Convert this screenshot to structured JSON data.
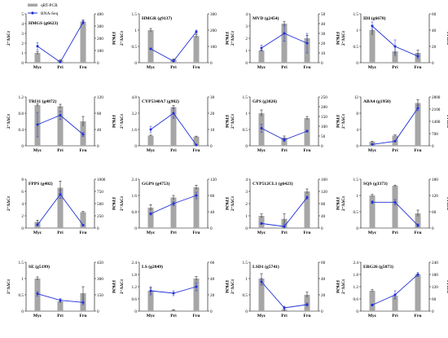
{
  "legend": {
    "bar_label": "qRT-PCR",
    "line_label": "RNA-Seq"
  },
  "y_left_label": "2⁻ΔΔCt",
  "y_right_label": "FPKM",
  "colors": {
    "bar": "#a6a6a6",
    "line": "#1f2fd6",
    "axis": "#000000"
  },
  "chart_data": [
    {
      "type": "bar",
      "title": "HMGS (g6623)",
      "categories": [
        "Myc",
        "Pri",
        "Fru"
      ],
      "bar_values": [
        1.0,
        0.25,
        4.2
      ],
      "bar_errors": [
        0.15,
        0.05,
        0.15
      ],
      "left_ticks": [
        0,
        1,
        2,
        3,
        4,
        5
      ],
      "line_values": [
        135,
        5,
        330
      ],
      "line_errors": [
        30,
        5,
        15
      ],
      "right_ticks": [
        0,
        100,
        200,
        300,
        400
      ]
    },
    {
      "type": "bar",
      "title": "HMGR (g9137)",
      "categories": [
        "Myc",
        "Pri",
        "Fru"
      ],
      "bar_values": [
        1.0,
        0.1,
        0.82
      ],
      "bar_errors": [
        0.05,
        0.02,
        0.05
      ],
      "left_ticks": [
        0,
        0.5,
        1.0,
        1.5
      ],
      "line_values": [
        85,
        10,
        190
      ],
      "line_errors": [
        5,
        3,
        10
      ],
      "right_ticks": [
        0,
        100,
        200,
        300
      ]
    },
    {
      "type": "bar",
      "title": "MVD (g2454)",
      "categories": [
        "Myc",
        "Pri",
        "Fru"
      ],
      "bar_values": [
        1.0,
        3.2,
        2.0
      ],
      "bar_errors": [
        0.05,
        0.15,
        0.25
      ],
      "left_ticks": [
        0,
        1,
        2,
        3,
        4
      ],
      "line_values": [
        15,
        30,
        20
      ],
      "line_errors": [
        3,
        8,
        10
      ],
      "right_ticks": [
        0,
        10,
        20,
        30,
        40,
        50
      ]
    },
    {
      "type": "bar",
      "title": "IDI (g6678)",
      "categories": [
        "Myc",
        "Pri",
        "Fru"
      ],
      "bar_values": [
        1.0,
        0.35,
        0.3
      ],
      "bar_errors": [
        0.15,
        0.15,
        0.08
      ],
      "left_ticks": [
        0,
        0.5,
        1.0,
        1.5
      ],
      "line_values": [
        45,
        20,
        8
      ],
      "line_errors": [
        5,
        8,
        3
      ],
      "right_ticks": [
        0,
        20,
        40,
        60
      ]
    },
    {
      "type": "bar",
      "title": "TRI11 (g4872)",
      "categories": [
        "Myc",
        "Pri",
        "Fru"
      ],
      "bar_values": [
        1.0,
        0.97,
        0.6
      ],
      "bar_errors": [
        0.03,
        0.05,
        0.12
      ],
      "left_ticks": [
        0,
        0.4,
        0.8,
        1.2
      ],
      "line_values": [
        52,
        75,
        28
      ],
      "line_errors": [
        30,
        10,
        5
      ],
      "right_ticks": [
        0,
        40,
        80,
        120
      ]
    },
    {
      "type": "bar",
      "title": "CYP5340A7 (g982)",
      "categories": [
        "Myc",
        "Pri",
        "Fru"
      ],
      "bar_values": [
        1.0,
        3.8,
        0.9
      ],
      "bar_errors": [
        0.05,
        0.15,
        0.05
      ],
      "left_ticks": [
        0,
        1.6,
        3.2,
        4.8
      ],
      "line_values": [
        10,
        20,
        0.5
      ],
      "line_errors": [
        2,
        3,
        0.5
      ],
      "right_ticks": [
        0,
        10,
        20,
        30
      ]
    },
    {
      "type": "bar",
      "title": "GPS (g3826)",
      "categories": [
        "Myc",
        "Pri",
        "Fru"
      ],
      "bar_values": [
        1.0,
        0.25,
        0.85
      ],
      "bar_errors": [
        0.1,
        0.05,
        0.05
      ],
      "left_ticks": [
        0,
        0.5,
        1.0,
        1.5
      ],
      "line_values": [
        90,
        30,
        75
      ],
      "line_errors": [
        20,
        8,
        5
      ],
      "right_ticks": [
        0,
        50,
        100,
        150,
        200,
        250
      ]
    },
    {
      "type": "bar",
      "title": "ABA4 (g1950)",
      "categories": [
        "Myc",
        "Pri",
        "Fru"
      ],
      "bar_values": [
        1.0,
        2.5,
        10.5
      ],
      "bar_errors": [
        0.1,
        0.15,
        0.8
      ],
      "left_ticks": [
        0,
        4,
        8,
        12
      ],
      "line_values": [
        80,
        260,
        2160
      ],
      "line_errors": [
        20,
        30,
        150
      ],
      "right_ticks": [
        0,
        700,
        1400,
        2100,
        2800
      ]
    },
    {
      "type": "bar",
      "title": "FPPS (g402)",
      "categories": [
        "Myc",
        "Pri",
        "Fru"
      ],
      "bar_values": [
        1.0,
        6.6,
        2.6
      ],
      "bar_errors": [
        0.3,
        1.1,
        0.1
      ],
      "left_ticks": [
        0,
        2,
        4,
        6,
        8
      ],
      "line_values": [
        65,
        690,
        60
      ],
      "line_errors": [
        15,
        80,
        10
      ],
      "right_ticks": [
        0,
        250,
        500,
        750,
        1000
      ]
    },
    {
      "type": "bar",
      "title": "GGPS (g4753)",
      "categories": [
        "Myc",
        "Pri",
        "Fru"
      ],
      "bar_values": [
        1.0,
        1.5,
        2.0
      ],
      "bar_errors": [
        0.15,
        0.1,
        0.1
      ],
      "left_ticks": [
        0,
        0.8,
        1.6,
        2.4
      ],
      "line_values": [
        35,
        60,
        80
      ],
      "line_errors": [
        3,
        5,
        8
      ],
      "right_ticks": [
        0,
        40,
        80,
        120
      ]
    },
    {
      "type": "bar",
      "title": "CYP512CL1 (g6423)",
      "categories": [
        "Myc",
        "Pri",
        "Fru"
      ],
      "bar_values": [
        1.0,
        0.75,
        3.0
      ],
      "bar_errors": [
        0.15,
        0.4,
        0.2
      ],
      "left_ticks": [
        0,
        1,
        2,
        3,
        4
      ],
      "line_values": [
        15,
        5,
        100
      ],
      "line_errors": [
        3,
        8,
        5
      ],
      "right_ticks": [
        0,
        40,
        80,
        120,
        160
      ]
    },
    {
      "type": "bar",
      "title": "SQS (g3373)",
      "categories": [
        "Myc",
        "Pri",
        "Fru"
      ],
      "bar_values": [
        1.0,
        1.3,
        0.45
      ],
      "bar_errors": [
        0.03,
        0.02,
        0.1
      ],
      "left_ticks": [
        0,
        0.5,
        1.0,
        1.5
      ],
      "line_values": [
        95,
        95,
        10
      ],
      "line_errors": [
        5,
        10,
        5
      ],
      "right_ticks": [
        0,
        60,
        120,
        180
      ]
    },
    {
      "type": "bar",
      "title": "SE (g5199)",
      "categories": [
        "Myc",
        "Pri",
        "Fru"
      ],
      "bar_values": [
        1.0,
        0.3,
        0.55
      ],
      "bar_errors": [
        0.05,
        0.05,
        0.2
      ],
      "left_ticks": [
        0,
        0.5,
        1.0,
        1.5
      ],
      "line_values": [
        160,
        100,
        80
      ],
      "line_errors": [
        20,
        15,
        20
      ],
      "right_ticks": [
        0,
        150,
        300,
        450
      ]
    },
    {
      "type": "bar",
      "title": "LS (g2849)",
      "categories": [
        "Myc",
        "Pri",
        "Fru"
      ],
      "bar_values": [
        1.0,
        0.05,
        1.6
      ],
      "bar_errors": [
        0.15,
        0.02,
        0.1
      ],
      "left_ticks": [
        0,
        0.6,
        1.2,
        1.8,
        2.4
      ],
      "line_values": [
        25,
        22,
        30
      ],
      "line_errors": [
        5,
        3,
        5
      ],
      "right_ticks": [
        0,
        20,
        40,
        60
      ]
    },
    {
      "type": "bar",
      "title": "LSD1 (g5741)",
      "categories": [
        "Myc",
        "Pri",
        "Fru"
      ],
      "bar_values": [
        1.0,
        0.05,
        0.5
      ],
      "bar_errors": [
        0.15,
        0.05,
        0.08
      ],
      "left_ticks": [
        0,
        0.5,
        1.0,
        1.5
      ],
      "line_values": [
        36,
        4,
        8
      ],
      "line_errors": [
        4,
        2,
        2
      ],
      "right_ticks": [
        0,
        20,
        40,
        60
      ]
    },
    {
      "type": "bar",
      "title": "ERG26 (g5073)",
      "categories": [
        "Myc",
        "Pri",
        "Fru"
      ],
      "bar_values": [
        1.0,
        0.75,
        1.8
      ],
      "bar_errors": [
        0.05,
        0.05,
        0.03
      ],
      "left_ticks": [
        0,
        0.6,
        1.2,
        1.8,
        2.4
      ],
      "line_values": [
        30,
        80,
        180
      ],
      "line_errors": [
        5,
        20,
        10
      ],
      "right_ticks": [
        0,
        60,
        120,
        180,
        240
      ]
    }
  ]
}
